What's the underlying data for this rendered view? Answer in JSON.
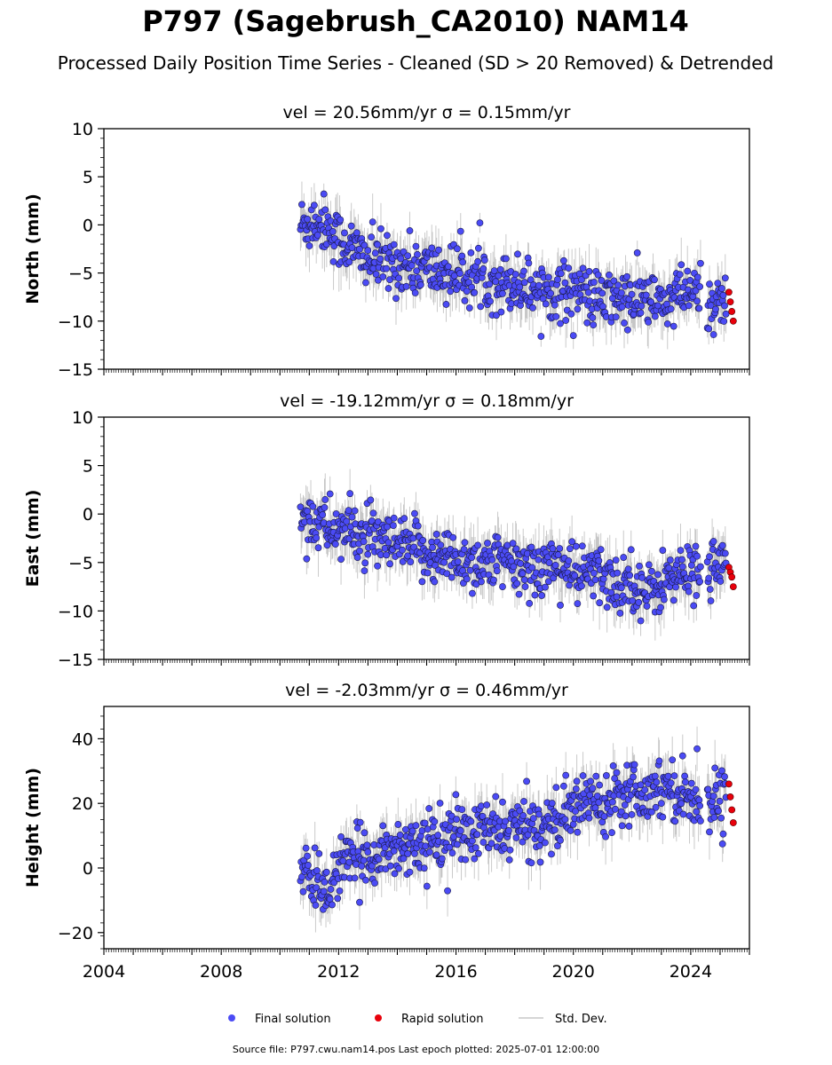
{
  "title": "P797 (Sagebrush_CA2010) NAM14",
  "subtitle": "Processed Daily Position Time Series - Cleaned (SD > 20 Removed) & Detrended",
  "legend": {
    "final": "Final solution",
    "rapid": "Rapid solution",
    "std": "Std. Dev."
  },
  "footer": "Source file: P797.cwu.nam14.pos  Last epoch plotted: 2025-07-01 12:00:00",
  "colors": {
    "final": "#4b4bf5",
    "rapid": "#e8000b",
    "std": "#b4b4b4"
  },
  "chart_data": [
    {
      "type": "scatter",
      "title": "vel = 20.56mm/yr   σ = 0.15mm/yr",
      "ylabel": "North (mm)",
      "xlim": [
        2004.0,
        2026.0
      ],
      "ylim": [
        -15,
        10
      ],
      "yticks": [
        10,
        5,
        0,
        -5,
        -10,
        -15
      ],
      "ytick_labels": [
        "10",
        "5",
        "0",
        "−5",
        "−10",
        "−15"
      ],
      "xticks": [],
      "series": [
        {
          "name": "Final solution",
          "x": [
            2010.7,
            2011.0,
            2011.3,
            2011.6,
            2012.0,
            2012.5,
            2013.0,
            2013.5,
            2014.0,
            2014.5,
            2015.0,
            2015.5,
            2016.0,
            2016.5,
            2017.0,
            2017.5,
            2018.0,
            2018.5,
            2019.0,
            2019.5,
            2020.0,
            2020.5,
            2021.0,
            2021.5,
            2022.0,
            2022.5,
            2023.0,
            2023.5,
            2024.0,
            2024.5,
            2025.0,
            2025.2
          ],
          "y": [
            0.0,
            0.2,
            0.5,
            0.0,
            -1.5,
            -2.5,
            -3.5,
            -4.0,
            -4.0,
            -4.5,
            -4.5,
            -5.0,
            -5.0,
            -5.5,
            -5.5,
            -6.0,
            -6.0,
            -6.5,
            -6.5,
            -7.0,
            -6.5,
            -7.5,
            -8.0,
            -7.5,
            -8.0,
            -7.5,
            -8.5,
            -7.5,
            -7.0,
            -8.0,
            -8.0,
            -8.3
          ]
        },
        {
          "name": "Rapid solution",
          "x": [
            2025.3,
            2025.35,
            2025.4,
            2025.45
          ],
          "y": [
            -7.0,
            -8.0,
            -9.0,
            -10.0
          ]
        }
      ]
    },
    {
      "type": "scatter",
      "title": "vel = -19.12mm/yr   σ = 0.18mm/yr",
      "ylabel": "East (mm)",
      "xlim": [
        2004.0,
        2026.0
      ],
      "ylim": [
        -15,
        10
      ],
      "yticks": [
        10,
        5,
        0,
        -5,
        -10,
        -15
      ],
      "ytick_labels": [
        "10",
        "5",
        "0",
        "−5",
        "−10",
        "−15"
      ],
      "xticks": [],
      "series": [
        {
          "name": "Final solution",
          "x": [
            2010.7,
            2011.0,
            2011.3,
            2011.6,
            2012.0,
            2012.5,
            2013.0,
            2013.5,
            2014.0,
            2014.5,
            2015.0,
            2015.5,
            2016.0,
            2016.5,
            2017.0,
            2017.5,
            2018.0,
            2018.5,
            2019.0,
            2019.5,
            2020.0,
            2020.5,
            2021.0,
            2021.5,
            2022.0,
            2022.5,
            2023.0,
            2023.5,
            2024.0,
            2024.5,
            2025.0,
            2025.2
          ],
          "y": [
            0.0,
            -0.5,
            -0.8,
            -1.5,
            -1.5,
            -2.0,
            -2.5,
            -3.0,
            -3.5,
            -3.5,
            -4.0,
            -4.5,
            -4.5,
            -5.0,
            -5.0,
            -5.0,
            -5.5,
            -5.5,
            -5.5,
            -5.0,
            -6.5,
            -6.0,
            -6.5,
            -7.5,
            -6.5,
            -8.5,
            -7.0,
            -6.5,
            -6.0,
            -5.5,
            -5.0,
            -5.5
          ]
        },
        {
          "name": "Rapid solution",
          "x": [
            2025.3,
            2025.35,
            2025.4,
            2025.45
          ],
          "y": [
            -5.5,
            -6.0,
            -6.5,
            -7.5
          ]
        }
      ]
    },
    {
      "type": "scatter",
      "title": "vel = -2.03mm/yr   σ = 0.46mm/yr",
      "ylabel": "Height (mm)",
      "xlim": [
        2004.0,
        2026.0
      ],
      "ylim": [
        -25,
        50
      ],
      "yticks": [
        40,
        20,
        0,
        -20
      ],
      "ytick_labels": [
        "40",
        "20",
        "0",
        "−20"
      ],
      "xticks": [
        2004,
        2008,
        2012,
        2016,
        2020,
        2024
      ],
      "series": [
        {
          "name": "Final solution",
          "x": [
            2010.7,
            2011.0,
            2011.3,
            2011.6,
            2012.0,
            2012.5,
            2013.0,
            2013.5,
            2014.0,
            2014.5,
            2015.0,
            2015.5,
            2016.0,
            2016.5,
            2017.0,
            2017.5,
            2018.0,
            2018.5,
            2019.0,
            2019.5,
            2020.0,
            2020.5,
            2021.0,
            2021.5,
            2022.0,
            2022.5,
            2023.0,
            2023.5,
            2024.0,
            2024.5,
            2025.0,
            2025.2
          ],
          "y": [
            0.0,
            -5.0,
            -3.0,
            -8.0,
            0.0,
            2.0,
            4.0,
            5.0,
            6.0,
            8.0,
            7.0,
            9.0,
            11.0,
            10.0,
            12.0,
            11.0,
            13.0,
            12.0,
            14.0,
            15.0,
            18.0,
            22.0,
            20.0,
            24.0,
            25.0,
            23.0,
            26.0,
            24.0,
            22.0,
            21.0,
            22.0,
            21.0
          ]
        },
        {
          "name": "Rapid solution",
          "x": [
            2025.3,
            2025.35,
            2025.4,
            2025.45
          ],
          "y": [
            26.0,
            22.0,
            18.0,
            14.0
          ]
        }
      ]
    }
  ]
}
